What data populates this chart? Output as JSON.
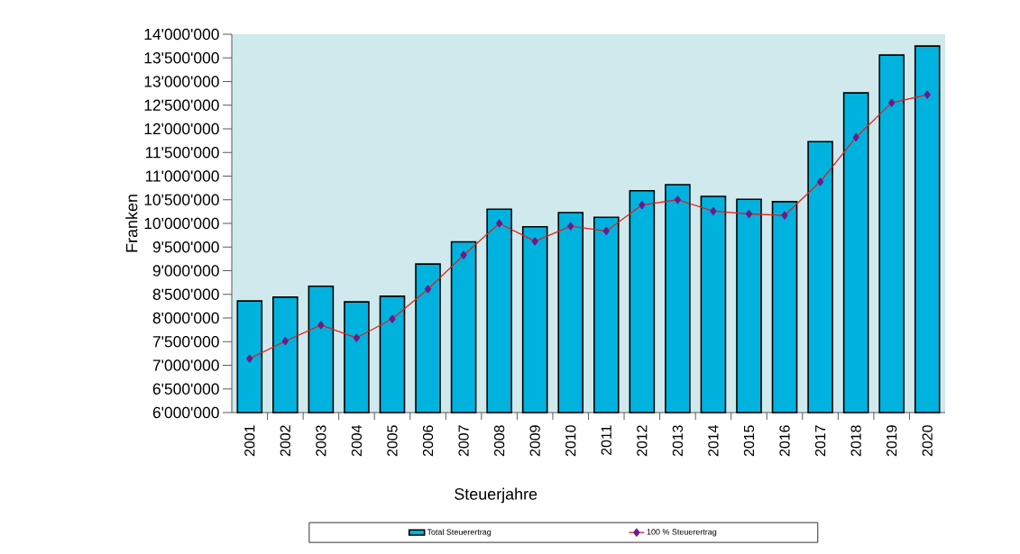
{
  "chart_data": {
    "type": "bar",
    "xlabel": "Steuerjahre",
    "ylabel": "Franken",
    "categories": [
      "2001",
      "2002",
      "2003",
      "2004",
      "2005",
      "2006",
      "2007",
      "2008",
      "2009",
      "2010",
      "2011",
      "2012",
      "2013",
      "2014",
      "2015",
      "2016",
      "2017",
      "2018",
      "2019",
      "2020"
    ],
    "series": [
      {
        "name": "Total Steuerertrag",
        "color": "#00b2de",
        "values": [
          8360000,
          8440000,
          8670000,
          8340000,
          8460000,
          9140000,
          9610000,
          10300000,
          9930000,
          10230000,
          10130000,
          10690000,
          10820000,
          10570000,
          10510000,
          10460000,
          11730000,
          12760000,
          13560000,
          13750000
        ]
      },
      {
        "name": "100 % Steuerertrag",
        "type": "line",
        "color": "#e32119",
        "marker": "diamond",
        "values": [
          7140000,
          7510000,
          7850000,
          7580000,
          7980000,
          8610000,
          9330000,
          10000000,
          9620000,
          9940000,
          9840000,
          10390000,
          10500000,
          10260000,
          10200000,
          10170000,
          10880000,
          11820000,
          12550000,
          12720000
        ]
      }
    ],
    "ylim": [
      6000000,
      14000000
    ],
    "yticks": [
      {
        "value": 6000000,
        "label": "6'000'000"
      },
      {
        "value": 6500000,
        "label": "6'500'000"
      },
      {
        "value": 7000000,
        "label": "7'000'000"
      },
      {
        "value": 7500000,
        "label": "7'500'000"
      },
      {
        "value": 8000000,
        "label": "8'000'000"
      },
      {
        "value": 8500000,
        "label": "8'500'000"
      },
      {
        "value": 9000000,
        "label": "9'000'000"
      },
      {
        "value": 9500000,
        "label": "9'500'000"
      },
      {
        "value": 10000000,
        "label": "10'000'000"
      },
      {
        "value": 10500000,
        "label": "10'500'000"
      },
      {
        "value": 11000000,
        "label": "11'000'000"
      },
      {
        "value": 11500000,
        "label": "11'500'000"
      },
      {
        "value": 12000000,
        "label": "12'000'000"
      },
      {
        "value": 12500000,
        "label": "12'500'000"
      },
      {
        "value": 13000000,
        "label": "13'000'000"
      },
      {
        "value": 13500000,
        "label": "13'500'000"
      },
      {
        "value": 14000000,
        "label": "14'000'000"
      }
    ],
    "legend": "bottom"
  }
}
